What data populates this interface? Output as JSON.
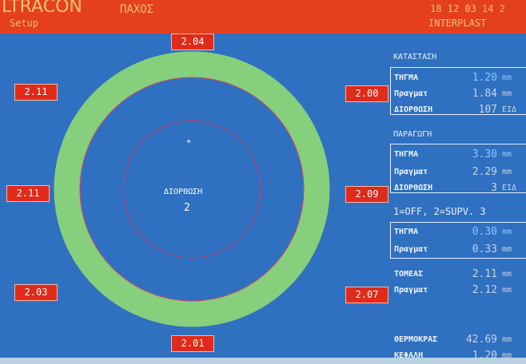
{
  "header": {
    "brand": "LTRACON",
    "mode": "Setup",
    "screen": "ΠΑΧΟΣ",
    "datetime": "18 12 03  14 2",
    "company": "INTERPLAST"
  },
  "ring": {
    "labels": [
      "2.04",
      "2.00",
      "2.09",
      "2.07",
      "2.01",
      "2.03",
      "2.11",
      "2.11"
    ],
    "center_title": "ΔΙΟΡΘΩΣΗ",
    "center_value": "2"
  },
  "panel": {
    "status": {
      "title": "ΚΑΤΑΣΤΑΣΗ",
      "rows": [
        [
          "ΤΗΓΜΑ",
          "1.20",
          "mm"
        ],
        [
          "Πραγματ",
          "1.84",
          "mm"
        ],
        [
          "ΔΙΟΡΘΩΣΗ",
          "107",
          "ΕΙΔ"
        ]
      ]
    },
    "production": {
      "title": "ΠΑΡΑΓΩΓΗ",
      "rows": [
        [
          "ΤΗΓΜΑ",
          "3.30",
          "mm"
        ],
        [
          "Πραγματ",
          "2.29",
          "mm"
        ],
        [
          "ΔΙΟΡΘΩΣΗ",
          "3",
          "ΕΙΔ"
        ]
      ]
    },
    "mode": {
      "title": "1=OFF, 2=SUPV. 3",
      "rows": [
        [
          "ΤΗΓΜΑ",
          "0.30",
          "mm"
        ],
        [
          "Πραγματ",
          "0.33",
          "mm"
        ]
      ]
    },
    "sector": {
      "rows": [
        [
          "ΤΟΜΕΑΣ",
          "2.11",
          "mm"
        ],
        [
          "Πραγματ",
          "2.12",
          "mm"
        ]
      ]
    },
    "temperature": {
      "rows": [
        [
          "ΘΕΡΜΟΚΡΑΣ",
          "42.69",
          "mm"
        ],
        [
          "ΚΕΦΑΛΗ",
          "1.20",
          "mm"
        ]
      ]
    }
  }
}
